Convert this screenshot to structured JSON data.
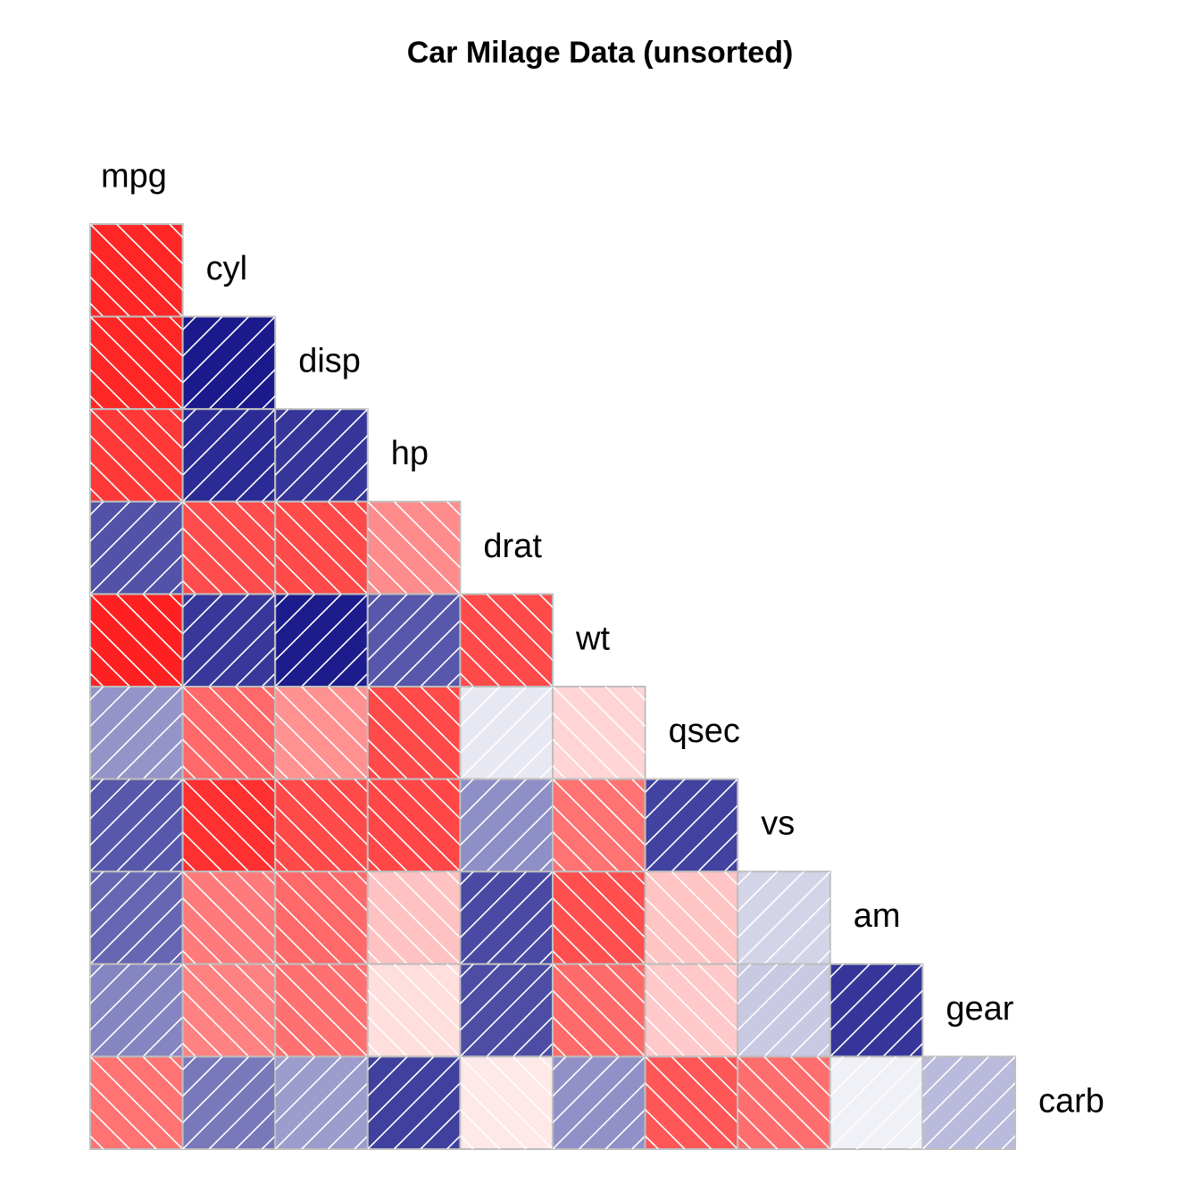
{
  "chart_data": {
    "type": "heatmap",
    "title": "Car Milage Data (unsorted)",
    "variables": [
      "mpg",
      "cyl",
      "disp",
      "hp",
      "drat",
      "wt",
      "qsec",
      "vs",
      "am",
      "gear",
      "carb"
    ],
    "layout": "lower-triangle",
    "encoding": "color: positive correlation = blue with forward-slash hatching, negative correlation = red with back-slash hatching; darker = stronger",
    "colors": {
      "positive": "#00007F",
      "negative": "#FF0000",
      "neutral": "#FFFFFF",
      "hatch": "#FFFFFF",
      "cell_border": "#BEBEBE"
    },
    "correlations": [
      {
        "row": "cyl",
        "col": "mpg",
        "value": -0.85
      },
      {
        "row": "disp",
        "col": "mpg",
        "value": -0.85
      },
      {
        "row": "disp",
        "col": "cyl",
        "value": 0.9
      },
      {
        "row": "hp",
        "col": "mpg",
        "value": -0.78
      },
      {
        "row": "hp",
        "col": "cyl",
        "value": 0.83
      },
      {
        "row": "hp",
        "col": "disp",
        "value": 0.79
      },
      {
        "row": "drat",
        "col": "mpg",
        "value": 0.68
      },
      {
        "row": "drat",
        "col": "cyl",
        "value": -0.7
      },
      {
        "row": "drat",
        "col": "disp",
        "value": -0.71
      },
      {
        "row": "drat",
        "col": "hp",
        "value": -0.45
      },
      {
        "row": "wt",
        "col": "mpg",
        "value": -0.87
      },
      {
        "row": "wt",
        "col": "cyl",
        "value": 0.78
      },
      {
        "row": "wt",
        "col": "disp",
        "value": 0.89
      },
      {
        "row": "wt",
        "col": "hp",
        "value": 0.66
      },
      {
        "row": "wt",
        "col": "drat",
        "value": -0.71
      },
      {
        "row": "qsec",
        "col": "mpg",
        "value": 0.42
      },
      {
        "row": "qsec",
        "col": "cyl",
        "value": -0.59
      },
      {
        "row": "qsec",
        "col": "disp",
        "value": -0.43
      },
      {
        "row": "qsec",
        "col": "hp",
        "value": -0.71
      },
      {
        "row": "qsec",
        "col": "drat",
        "value": 0.09
      },
      {
        "row": "qsec",
        "col": "wt",
        "value": -0.17
      },
      {
        "row": "vs",
        "col": "mpg",
        "value": 0.66
      },
      {
        "row": "vs",
        "col": "cyl",
        "value": -0.81
      },
      {
        "row": "vs",
        "col": "disp",
        "value": -0.71
      },
      {
        "row": "vs",
        "col": "hp",
        "value": -0.72
      },
      {
        "row": "vs",
        "col": "drat",
        "value": 0.44
      },
      {
        "row": "vs",
        "col": "wt",
        "value": -0.55
      },
      {
        "row": "vs",
        "col": "qsec",
        "value": 0.74
      },
      {
        "row": "am",
        "col": "mpg",
        "value": 0.6
      },
      {
        "row": "am",
        "col": "cyl",
        "value": -0.52
      },
      {
        "row": "am",
        "col": "disp",
        "value": -0.59
      },
      {
        "row": "am",
        "col": "hp",
        "value": -0.24
      },
      {
        "row": "am",
        "col": "drat",
        "value": 0.71
      },
      {
        "row": "am",
        "col": "wt",
        "value": -0.69
      },
      {
        "row": "am",
        "col": "qsec",
        "value": -0.23
      },
      {
        "row": "am",
        "col": "vs",
        "value": 0.17
      },
      {
        "row": "gear",
        "col": "mpg",
        "value": 0.48
      },
      {
        "row": "gear",
        "col": "cyl",
        "value": -0.49
      },
      {
        "row": "gear",
        "col": "disp",
        "value": -0.56
      },
      {
        "row": "gear",
        "col": "hp",
        "value": -0.13
      },
      {
        "row": "gear",
        "col": "drat",
        "value": 0.7
      },
      {
        "row": "gear",
        "col": "wt",
        "value": -0.58
      },
      {
        "row": "gear",
        "col": "qsec",
        "value": -0.21
      },
      {
        "row": "gear",
        "col": "vs",
        "value": 0.21
      },
      {
        "row": "gear",
        "col": "am",
        "value": 0.79
      },
      {
        "row": "carb",
        "col": "mpg",
        "value": -0.55
      },
      {
        "row": "carb",
        "col": "cyl",
        "value": 0.53
      },
      {
        "row": "carb",
        "col": "disp",
        "value": 0.39
      },
      {
        "row": "carb",
        "col": "hp",
        "value": 0.75
      },
      {
        "row": "carb",
        "col": "drat",
        "value": -0.09
      },
      {
        "row": "carb",
        "col": "wt",
        "value": 0.43
      },
      {
        "row": "carb",
        "col": "qsec",
        "value": -0.66
      },
      {
        "row": "carb",
        "col": "vs",
        "value": -0.57
      },
      {
        "row": "carb",
        "col": "am",
        "value": 0.06
      },
      {
        "row": "carb",
        "col": "gear",
        "value": 0.27
      }
    ]
  }
}
